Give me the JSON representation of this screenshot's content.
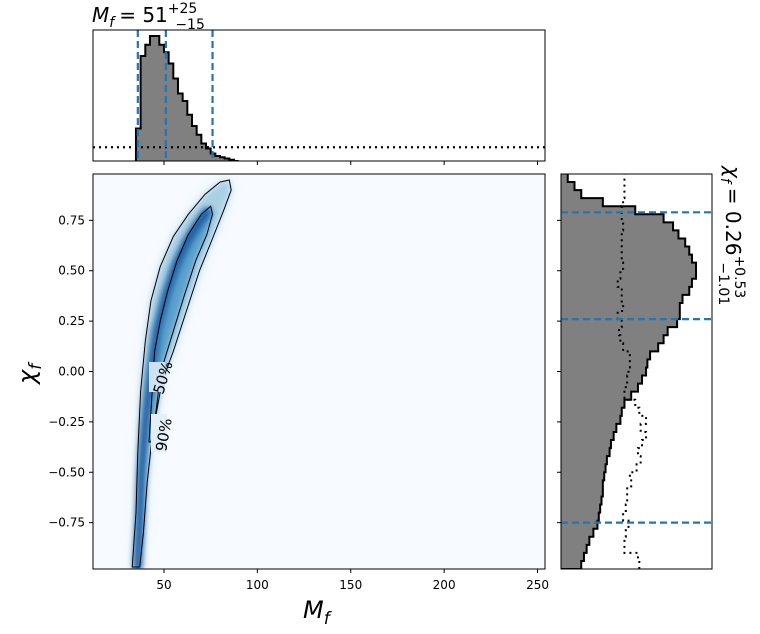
{
  "chart_data": [
    {
      "type": "histogram",
      "panel": "top-marginal",
      "title": {
        "base": "M",
        "sub": "f",
        "eq": "= 51",
        "sup": "+25",
        "low": "−15"
      },
      "x": [
        35,
        37.5,
        40,
        42.5,
        45,
        47.5,
        50,
        52.5,
        55,
        57.5,
        60,
        62.5,
        65,
        67.5,
        70,
        72.5,
        75,
        77.5,
        80,
        82.5,
        85,
        87.5,
        90
      ],
      "counts": [
        0.26,
        0.84,
        0.93,
        1.0,
        1.0,
        0.93,
        0.87,
        0.78,
        0.66,
        0.54,
        0.48,
        0.37,
        0.28,
        0.21,
        0.14,
        0.1,
        0.06,
        0.04,
        0.03,
        0.02,
        0.01,
        0.0
      ],
      "prior_level": 0.11,
      "quantile_lines": [
        36,
        51,
        76
      ],
      "xlim": [
        12,
        254
      ]
    },
    {
      "type": "heatmap",
      "panel": "joint",
      "xlabel": {
        "base": "M",
        "sub": "f"
      },
      "ylabel": {
        "base": "χ",
        "sub": "f"
      },
      "xlim": [
        12,
        254
      ],
      "ylim": [
        -0.98,
        0.98
      ],
      "xticks": [
        50,
        100,
        150,
        200,
        250
      ],
      "yticks": [
        -0.75,
        -0.5,
        -0.25,
        0.0,
        0.25,
        0.5,
        0.75
      ],
      "ytick_labels": [
        "−0.75",
        "−0.50",
        "−0.25",
        "0.00",
        "0.25",
        "0.50",
        "0.75"
      ],
      "contour_labels": [
        "50%",
        "90%"
      ],
      "contour_90": [
        [
          33,
          -0.97
        ],
        [
          35,
          -0.7
        ],
        [
          36,
          -0.4
        ],
        [
          37.5,
          -0.1
        ],
        [
          40,
          0.15
        ],
        [
          43,
          0.35
        ],
        [
          48,
          0.52
        ],
        [
          55,
          0.67
        ],
        [
          63,
          0.78
        ],
        [
          72,
          0.88
        ],
        [
          80,
          0.94
        ],
        [
          85,
          0.95
        ],
        [
          86,
          0.9
        ],
        [
          82,
          0.8
        ],
        [
          76,
          0.66
        ],
        [
          69,
          0.5
        ],
        [
          62,
          0.3
        ],
        [
          55,
          0.1
        ],
        [
          49,
          -0.05
        ],
        [
          44,
          -0.3
        ],
        [
          41,
          -0.55
        ],
        [
          39,
          -0.8
        ],
        [
          37,
          -0.97
        ]
      ],
      "contour_50": [
        [
          42,
          -0.35
        ],
        [
          43,
          -0.2
        ],
        [
          44,
          -0.05
        ],
        [
          45,
          0.1
        ],
        [
          48,
          0.25
        ],
        [
          52,
          0.4
        ],
        [
          57,
          0.55
        ],
        [
          63,
          0.68
        ],
        [
          70,
          0.78
        ],
        [
          75,
          0.82
        ],
        [
          76,
          0.78
        ],
        [
          73,
          0.68
        ],
        [
          67,
          0.55
        ],
        [
          61,
          0.38
        ],
        [
          55,
          0.2
        ],
        [
          50,
          0.05
        ],
        [
          47,
          -0.1
        ],
        [
          45,
          -0.25
        ],
        [
          43,
          -0.35
        ]
      ],
      "ridge": [
        [
          36,
          -0.97
        ],
        [
          37,
          -0.75
        ],
        [
          38,
          -0.5
        ],
        [
          40,
          -0.25
        ],
        [
          43,
          0.0
        ],
        [
          46,
          0.2
        ],
        [
          51,
          0.38
        ],
        [
          56,
          0.52
        ],
        [
          62,
          0.64
        ],
        [
          68,
          0.73
        ],
        [
          73,
          0.79
        ]
      ]
    },
    {
      "type": "histogram",
      "panel": "right-marginal",
      "title": {
        "base": "χ",
        "sub": "f",
        "eq": "= 0.26",
        "sup": "+0.53",
        "low": "−1.01"
      },
      "ybins": [
        -0.98,
        -0.94,
        -0.9,
        -0.86,
        -0.82,
        -0.78,
        -0.74,
        -0.7,
        -0.66,
        -0.62,
        -0.58,
        -0.54,
        -0.5,
        -0.46,
        -0.42,
        -0.38,
        -0.34,
        -0.3,
        -0.26,
        -0.22,
        -0.18,
        -0.14,
        -0.1,
        -0.06,
        -0.02,
        0.02,
        0.06,
        0.1,
        0.14,
        0.18,
        0.22,
        0.26,
        0.3,
        0.34,
        0.38,
        0.42,
        0.46,
        0.5,
        0.54,
        0.58,
        0.62,
        0.66,
        0.7,
        0.74,
        0.78,
        0.82,
        0.86,
        0.9,
        0.94,
        0.98
      ],
      "counts": [
        0.15,
        0.17,
        0.19,
        0.21,
        0.24,
        0.27,
        0.28,
        0.29,
        0.3,
        0.31,
        0.31,
        0.32,
        0.33,
        0.34,
        0.36,
        0.37,
        0.39,
        0.41,
        0.44,
        0.45,
        0.47,
        0.52,
        0.57,
        0.6,
        0.63,
        0.64,
        0.66,
        0.72,
        0.76,
        0.79,
        0.86,
        0.88,
        0.88,
        0.9,
        0.95,
        0.97,
        1.0,
        1.0,
        0.97,
        0.95,
        0.92,
        0.87,
        0.83,
        0.76,
        0.55,
        0.31,
        0.15,
        0.1,
        0.05
      ],
      "prior": [
        0.58,
        0.57,
        0.47,
        0.47,
        0.48,
        0.5,
        0.46,
        0.48,
        0.49,
        0.49,
        0.52,
        0.51,
        0.56,
        0.59,
        0.57,
        0.6,
        0.63,
        0.59,
        0.63,
        0.58,
        0.55,
        0.47,
        0.48,
        0.49,
        0.5,
        0.51,
        0.51,
        0.46,
        0.44,
        0.43,
        0.45,
        0.42,
        0.46,
        0.45,
        0.45,
        0.42,
        0.44,
        0.46,
        0.45,
        0.45,
        0.45,
        0.45,
        0.46,
        0.45,
        0.45,
        0.46,
        0.47,
        0.47,
        0.47
      ],
      "quantile_lines": [
        -0.75,
        0.26,
        0.79
      ],
      "ylim": [
        -0.98,
        0.98
      ]
    }
  ],
  "colors": {
    "hist_fill": "#808080",
    "quantile_line": "#1f77b4",
    "heat_low": "#f7fbff",
    "heat_high": "#08306b"
  }
}
